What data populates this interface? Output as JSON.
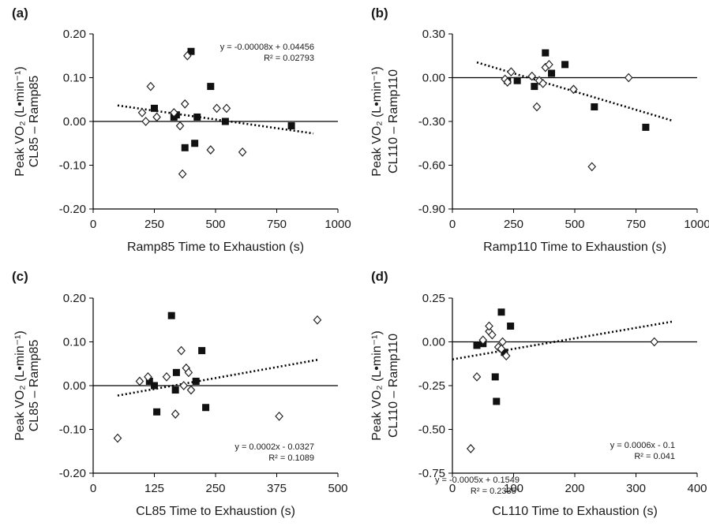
{
  "chart_data": [
    {
      "type": "scatter",
      "panel_label": "(a)",
      "ylabel_lines": [
        "Peak VO₂ (L•min⁻¹)",
        "CL85 – Ramp85"
      ],
      "xlabel": "Ramp85 Time to Exhaustion (s)",
      "xlim": [
        0,
        1000
      ],
      "ylim": [
        -0.2,
        0.2
      ],
      "xticks": [
        0,
        250,
        500,
        750,
        1000
      ],
      "yticks": [
        -0.2,
        -0.1,
        0,
        0.1,
        0.2
      ],
      "xtick_labels": [
        "0",
        "250",
        "500",
        "750",
        "1000"
      ],
      "ytick_labels": [
        "-0.20",
        "-0.10",
        "0.00",
        "0.10",
        "0.20"
      ],
      "zero_line": true,
      "series": [
        {
          "marker": "square",
          "x": [
            250,
            330,
            340,
            375,
            400,
            415,
            425,
            480,
            540,
            810
          ],
          "y": [
            0.03,
            0.01,
            0.015,
            -0.06,
            0.16,
            -0.05,
            0.01,
            0.08,
            0.0,
            -0.01
          ]
        },
        {
          "marker": "diamond",
          "x": [
            200,
            215,
            235,
            260,
            330,
            355,
            365,
            375,
            385,
            480,
            505,
            545,
            610
          ],
          "y": [
            0.02,
            0.0,
            0.08,
            0.01,
            0.02,
            -0.01,
            -0.12,
            0.04,
            0.15,
            -0.065,
            0.03,
            0.03,
            -0.07
          ]
        }
      ],
      "trendline": {
        "x": [
          100,
          900
        ],
        "y": [
          0.03656,
          -0.02744
        ]
      },
      "equation": "y = -0.00008x + 0.04456",
      "r2": "R² = 0.02793"
    },
    {
      "type": "scatter",
      "panel_label": "(b)",
      "ylabel_lines": [
        "Peak VO₂ (L•min⁻¹)",
        "CL110 – Ramp110"
      ],
      "xlabel": "Ramp110 Time to Exhaustion (s)",
      "xlim": [
        0,
        1000
      ],
      "ylim": [
        -0.9,
        0.3
      ],
      "xticks": [
        0,
        250,
        500,
        750,
        1000
      ],
      "yticks": [
        -0.9,
        -0.6,
        -0.3,
        0,
        0.3
      ],
      "xtick_labels": [
        "0",
        "250",
        "500",
        "750",
        "1000"
      ],
      "ytick_labels": [
        "-0.90",
        "-0.60",
        "-0.30",
        "0.00",
        "0.30"
      ],
      "zero_line": true,
      "series": [
        {
          "marker": "square",
          "x": [
            225,
            265,
            335,
            380,
            405,
            460,
            580,
            790
          ],
          "y": [
            -0.02,
            -0.02,
            -0.06,
            0.17,
            0.03,
            0.09,
            -0.2,
            -0.34
          ]
        },
        {
          "marker": "diamond",
          "x": [
            215,
            225,
            240,
            325,
            345,
            355,
            370,
            380,
            395,
            495,
            570,
            720
          ],
          "y": [
            -0.01,
            -0.03,
            0.04,
            0.01,
            -0.2,
            -0.02,
            -0.04,
            0.07,
            0.09,
            -0.08,
            -0.61,
            0.0
          ]
        }
      ],
      "trendline": {
        "x": [
          100,
          900
        ],
        "y": [
          0.1049,
          -0.2951
        ]
      },
      "equation": "y = -0.0005x + 0.1549",
      "r2": "R² = 0.2335*"
    },
    {
      "type": "scatter",
      "panel_label": "(c)",
      "ylabel_lines": [
        "Peak VO₂ (L•min⁻¹)",
        "CL85 – Ramp85"
      ],
      "xlabel": "CL85 Time to Exhaustion (s)",
      "xlim": [
        0,
        500
      ],
      "ylim": [
        -0.2,
        0.2
      ],
      "xticks": [
        0,
        125,
        250,
        375,
        500
      ],
      "yticks": [
        -0.2,
        -0.1,
        0,
        0.1,
        0.2
      ],
      "xtick_labels": [
        "0",
        "125",
        "250",
        "375",
        "500"
      ],
      "ytick_labels": [
        "-0.20",
        "-0.10",
        "0.00",
        "0.10",
        "0.20"
      ],
      "zero_line": true,
      "series": [
        {
          "marker": "square",
          "x": [
            115,
            125,
            130,
            160,
            168,
            170,
            210,
            222,
            230
          ],
          "y": [
            0.01,
            0.0,
            -0.06,
            0.16,
            -0.01,
            0.03,
            0.01,
            0.08,
            -0.05
          ]
        },
        {
          "marker": "diamond",
          "x": [
            50,
            95,
            112,
            150,
            168,
            180,
            185,
            190,
            195,
            200,
            380,
            458
          ],
          "y": [
            -0.12,
            0.01,
            0.02,
            0.02,
            -0.065,
            0.08,
            0.0,
            0.04,
            0.03,
            -0.01,
            -0.07,
            0.15
          ]
        }
      ],
      "trendline": {
        "x": [
          50,
          460
        ],
        "y": [
          -0.0227,
          0.0593
        ]
      },
      "equation": "y = 0.0002x - 0.0327",
      "r2": "R² = 0.1089"
    },
    {
      "type": "scatter",
      "panel_label": "(d)",
      "ylabel_lines": [
        "Peak VO₂ (L•min⁻¹)",
        "CL110 – Ramp110"
      ],
      "xlabel": "CL110 Time to Exhaustion (s)",
      "xlim": [
        0,
        400
      ],
      "ylim": [
        -0.75,
        0.25
      ],
      "xticks": [
        0,
        100,
        200,
        300,
        400
      ],
      "yticks": [
        -0.75,
        -0.5,
        -0.25,
        0,
        0.25
      ],
      "xtick_labels": [
        "0",
        "100",
        "200",
        "300",
        "400"
      ],
      "ytick_labels": [
        "-0.75",
        "-0.50",
        "-0.25",
        "0.00",
        "0.25"
      ],
      "zero_line": true,
      "series": [
        {
          "marker": "square",
          "x": [
            40,
            50,
            70,
            72,
            80,
            85,
            95
          ],
          "y": [
            -0.02,
            -0.01,
            -0.2,
            -0.34,
            0.17,
            -0.06,
            0.09
          ]
        },
        {
          "marker": "diamond",
          "x": [
            30,
            40,
            50,
            60,
            60,
            65,
            75,
            80,
            82,
            88,
            330
          ],
          "y": [
            -0.61,
            -0.2,
            0.01,
            0.06,
            0.09,
            0.04,
            -0.03,
            -0.04,
            0.0,
            -0.08,
            0.0
          ]
        }
      ],
      "trendline": {
        "x": [
          0,
          360
        ],
        "y": [
          -0.1,
          0.116
        ]
      },
      "equation": "y = 0.0006x - 0.1",
      "r2": "R² = 0.041"
    }
  ]
}
